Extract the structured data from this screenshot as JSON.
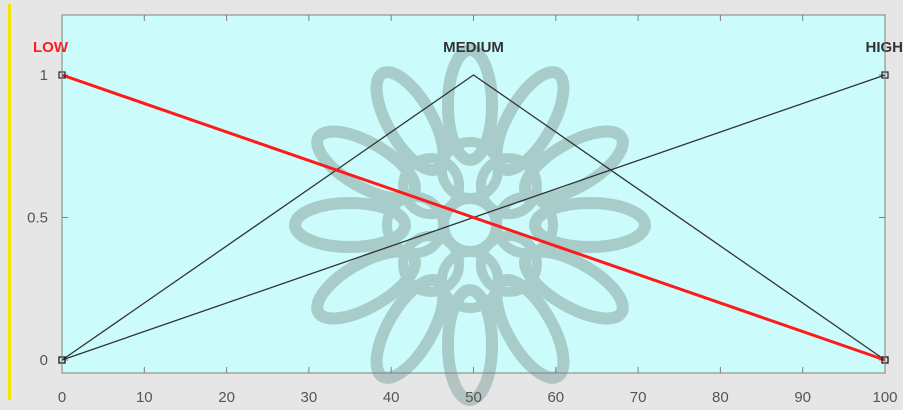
{
  "colors": {
    "plot_bg": "#ccfbfb",
    "page_bg": "#e6e6e6",
    "selected_mf": "#ff1a1a",
    "other_mf": "#333333",
    "axis": "#808080",
    "watermark": "#8aa7a3"
  },
  "chart_data": {
    "type": "line",
    "xlim": [
      0,
      100
    ],
    "ylim": [
      0,
      1
    ],
    "x_ticks": [
      "0",
      "10",
      "20",
      "30",
      "40",
      "50",
      "60",
      "70",
      "80",
      "90",
      "100"
    ],
    "y_ticks": [
      "0",
      "0.5",
      "1"
    ],
    "grid": false,
    "series": [
      {
        "name": "LOW",
        "selected": true,
        "x": [
          0,
          100
        ],
        "y": [
          1,
          0
        ]
      },
      {
        "name": "MEDIUM",
        "selected": false,
        "x": [
          0,
          50,
          100
        ],
        "y": [
          0,
          1,
          0
        ]
      },
      {
        "name": "HIGH",
        "selected": false,
        "x": [
          0,
          100
        ],
        "y": [
          0,
          1
        ]
      }
    ]
  }
}
